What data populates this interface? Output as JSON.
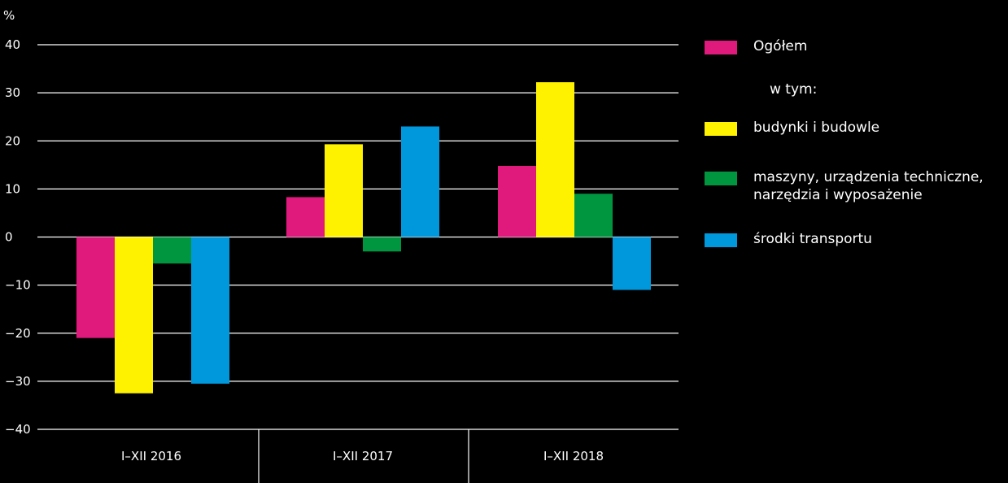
{
  "chart_data": {
    "type": "bar",
    "ylabel": "%",
    "ylim": [
      -40,
      40
    ],
    "yticks": [
      40,
      30,
      20,
      10,
      0,
      -10,
      -20,
      -30,
      -40
    ],
    "categories": [
      "I–XII 2016",
      "I–XII 2017",
      "I–XII 2018"
    ],
    "series": [
      {
        "name": "Ogółem",
        "color": "#e0197d",
        "values": [
          -21,
          8.3,
          14.8
        ]
      },
      {
        "name": "budynki i budowle",
        "color": "#fff200",
        "values": [
          -32.5,
          19.3,
          32.2
        ]
      },
      {
        "name": "maszyny, urządzenia techniczne,\nnarzędzia i wyposażenie",
        "color": "#00963f",
        "values": [
          -5.5,
          -3,
          9
        ]
      },
      {
        "name": "środki transportu",
        "color": "#0098dc",
        "values": [
          -30.5,
          23,
          -11
        ]
      }
    ],
    "legend_position": "right",
    "legend_note": "w tym:",
    "grid": true
  }
}
